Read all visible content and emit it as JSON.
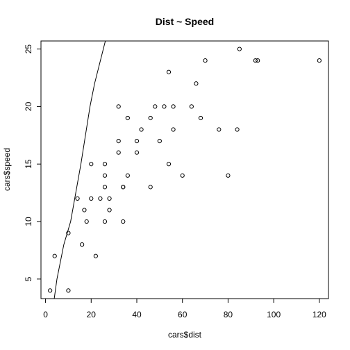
{
  "chart_data": {
    "type": "scatter",
    "title": "Dist ~ Speed",
    "xlabel": "cars$dist",
    "ylabel": "cars$speed",
    "xlim": [
      -2,
      124
    ],
    "ylim": [
      3.3,
      25.7
    ],
    "x_ticks": [
      0,
      20,
      40,
      60,
      80,
      100,
      120
    ],
    "y_ticks": [
      5,
      10,
      15,
      20,
      25
    ],
    "grid": false,
    "point_style": "open-circle",
    "points": [
      {
        "x": 2,
        "y": 4
      },
      {
        "x": 10,
        "y": 4
      },
      {
        "x": 4,
        "y": 7
      },
      {
        "x": 22,
        "y": 7
      },
      {
        "x": 16,
        "y": 8
      },
      {
        "x": 10,
        "y": 9
      },
      {
        "x": 18,
        "y": 10
      },
      {
        "x": 26,
        "y": 10
      },
      {
        "x": 34,
        "y": 10
      },
      {
        "x": 17,
        "y": 11
      },
      {
        "x": 28,
        "y": 11
      },
      {
        "x": 14,
        "y": 12
      },
      {
        "x": 20,
        "y": 12
      },
      {
        "x": 24,
        "y": 12
      },
      {
        "x": 28,
        "y": 12
      },
      {
        "x": 26,
        "y": 13
      },
      {
        "x": 34,
        "y": 13
      },
      {
        "x": 34,
        "y": 13
      },
      {
        "x": 46,
        "y": 13
      },
      {
        "x": 26,
        "y": 14
      },
      {
        "x": 36,
        "y": 14
      },
      {
        "x": 60,
        "y": 14
      },
      {
        "x": 80,
        "y": 14
      },
      {
        "x": 20,
        "y": 15
      },
      {
        "x": 26,
        "y": 15
      },
      {
        "x": 54,
        "y": 15
      },
      {
        "x": 32,
        "y": 16
      },
      {
        "x": 40,
        "y": 16
      },
      {
        "x": 32,
        "y": 17
      },
      {
        "x": 40,
        "y": 17
      },
      {
        "x": 50,
        "y": 17
      },
      {
        "x": 42,
        "y": 18
      },
      {
        "x": 56,
        "y": 18
      },
      {
        "x": 76,
        "y": 18
      },
      {
        "x": 84,
        "y": 18
      },
      {
        "x": 36,
        "y": 19
      },
      {
        "x": 46,
        "y": 19
      },
      {
        "x": 68,
        "y": 19
      },
      {
        "x": 32,
        "y": 20
      },
      {
        "x": 48,
        "y": 20
      },
      {
        "x": 52,
        "y": 20
      },
      {
        "x": 56,
        "y": 20
      },
      {
        "x": 64,
        "y": 20
      },
      {
        "x": 66,
        "y": 22
      },
      {
        "x": 54,
        "y": 23
      },
      {
        "x": 70,
        "y": 24
      },
      {
        "x": 92,
        "y": 24
      },
      {
        "x": 93,
        "y": 24
      },
      {
        "x": 120,
        "y": 24
      },
      {
        "x": 85,
        "y": 25
      }
    ],
    "line": {
      "points": [
        [
          3.8,
          3.3
        ],
        [
          5,
          5
        ],
        [
          8,
          8
        ],
        [
          11,
          10
        ],
        [
          15.5,
          15
        ],
        [
          19.5,
          20
        ],
        [
          21.5,
          22
        ],
        [
          26.2,
          25.7
        ]
      ]
    },
    "colors": {
      "ink": "#000000",
      "background": "#ffffff"
    }
  }
}
